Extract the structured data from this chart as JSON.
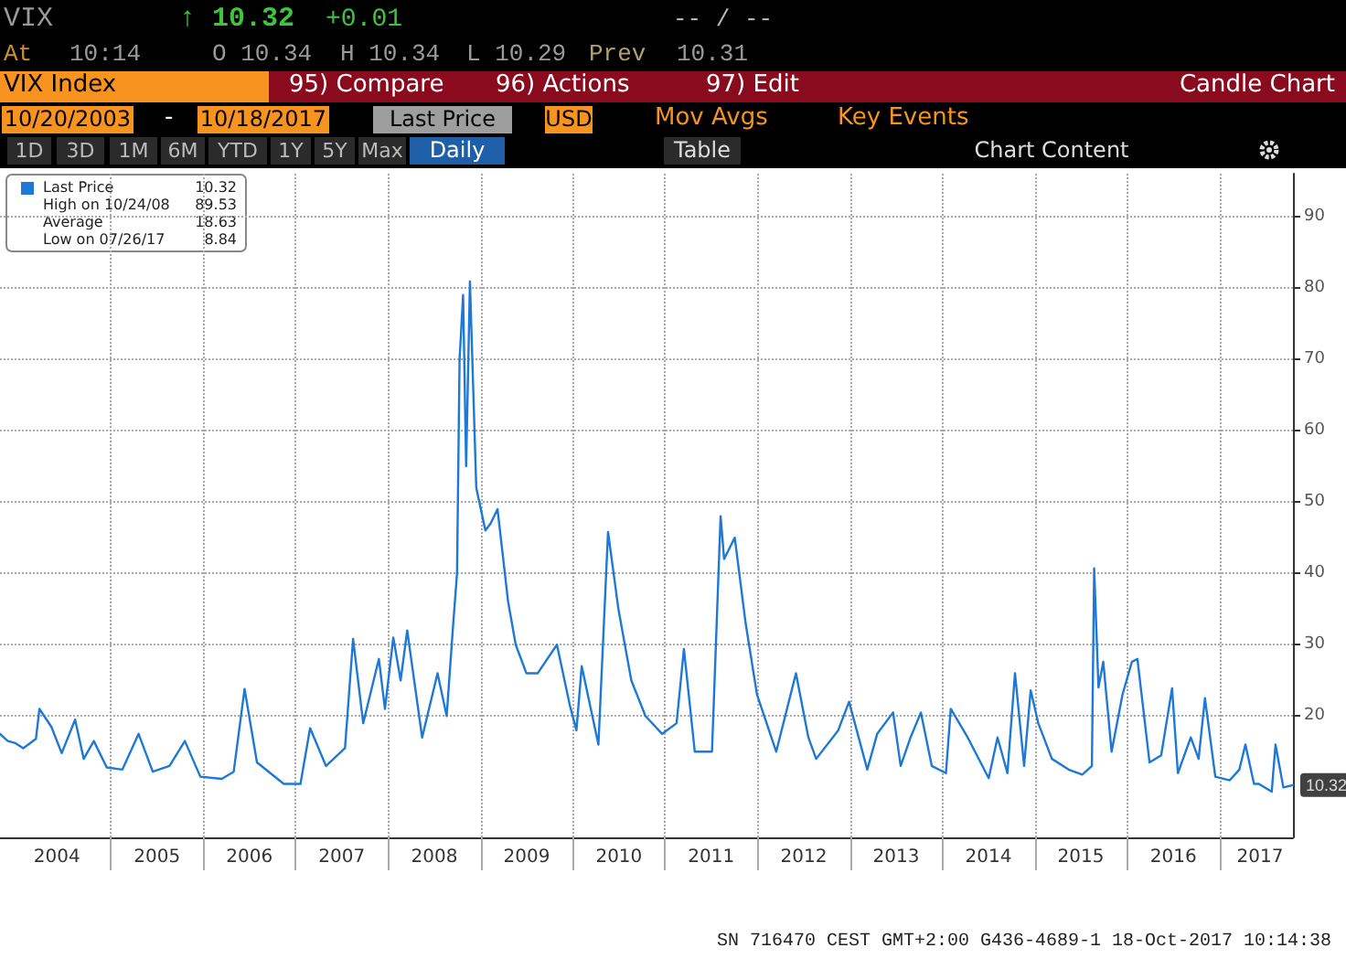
{
  "chart_data": {
    "type": "line",
    "title": "VIX Index",
    "series": [
      {
        "name": "Last Price",
        "color": "#1e78d6",
        "x": [
          "2003-10-20",
          "2003-11-20",
          "2003-12-20",
          "2004-01-20",
          "2004-03-10",
          "2004-03-24",
          "2004-05-10",
          "2004-06-20",
          "2004-08-12",
          "2004-09-15",
          "2004-10-25",
          "2004-12-15",
          "2005-02-15",
          "2005-04-20",
          "2005-06-15",
          "2005-08-20",
          "2005-10-20",
          "2005-12-20",
          "2006-03-15",
          "2006-05-01",
          "2006-06-13",
          "2006-08-01",
          "2006-11-15",
          "2007-01-20",
          "2007-02-27",
          "2007-05-01",
          "2007-07-15",
          "2007-08-16",
          "2007-09-25",
          "2007-11-26",
          "2007-12-20",
          "2008-01-22",
          "2008-02-20",
          "2008-03-17",
          "2008-05-15",
          "2008-07-15",
          "2008-08-20",
          "2008-09-15",
          "2008-09-30",
          "2008-10-10",
          "2008-10-24",
          "2008-11-05",
          "2008-11-20",
          "2008-12-15",
          "2009-01-20",
          "2009-02-10",
          "2009-03-09",
          "2009-04-20",
          "2009-05-20",
          "2009-07-01",
          "2009-08-15",
          "2009-10-30",
          "2009-12-20",
          "2010-01-15",
          "2010-02-05",
          "2010-04-12",
          "2010-05-20",
          "2010-06-30",
          "2010-08-20",
          "2010-10-15",
          "2010-12-20",
          "2011-02-15",
          "2011-03-16",
          "2011-04-28",
          "2011-07-05",
          "2011-08-08",
          "2011-08-22",
          "2011-10-03",
          "2011-11-15",
          "2011-12-30",
          "2012-03-15",
          "2012-06-01",
          "2012-07-20",
          "2012-08-20",
          "2012-11-15",
          "2012-12-28",
          "2013-03-10",
          "2013-04-18",
          "2013-06-20",
          "2013-07-20",
          "2013-08-28",
          "2013-10-08",
          "2013-11-20",
          "2014-01-15",
          "2014-02-03",
          "2014-04-11",
          "2014-07-03",
          "2014-08-07",
          "2014-09-15",
          "2014-10-15",
          "2014-11-20",
          "2014-12-16",
          "2015-01-15",
          "2015-03-10",
          "2015-05-15",
          "2015-07-08",
          "2015-08-15",
          "2015-08-24",
          "2015-09-10",
          "2015-09-29",
          "2015-11-01",
          "2015-12-14",
          "2016-01-20",
          "2016-02-11",
          "2016-03-30",
          "2016-05-15",
          "2016-06-27",
          "2016-07-20",
          "2016-09-09",
          "2016-10-10",
          "2016-11-04",
          "2016-12-15",
          "2017-02-10",
          "2017-03-20",
          "2017-04-13",
          "2017-05-17",
          "2017-06-05",
          "2017-07-26",
          "2017-08-10",
          "2017-09-10",
          "2017-10-18"
        ],
        "values": [
          17.5,
          16.5,
          16.2,
          15.5,
          16.8,
          21,
          18.5,
          14.8,
          19.5,
          14,
          16.5,
          12.8,
          12.5,
          17.5,
          12.2,
          13,
          16.5,
          11.5,
          11.2,
          12.2,
          23.8,
          13.5,
          10.5,
          10.5,
          18.3,
          13,
          15.5,
          30.8,
          19,
          28,
          21,
          31,
          25,
          32,
          17,
          26,
          20,
          33,
          40,
          70,
          79,
          55,
          80.9,
          52,
          46,
          47,
          49,
          36,
          30,
          26,
          26,
          30,
          21.5,
          18,
          27,
          16,
          45.8,
          35,
          25,
          20,
          17.5,
          19,
          29.4,
          15,
          15,
          48,
          42,
          45,
          33,
          23,
          15,
          26,
          17,
          14,
          18,
          22,
          12.5,
          17.5,
          20.5,
          13,
          17,
          20.5,
          13,
          12,
          21,
          17,
          11.3,
          17,
          12,
          26,
          13,
          23.6,
          19,
          14,
          12.5,
          11.8,
          13,
          40.7,
          24,
          27.6,
          15,
          23,
          27.6,
          28,
          13.5,
          14.5,
          23.9,
          12,
          17,
          14,
          22.5,
          11.5,
          11,
          12.5,
          16,
          10.5,
          10.5,
          9.4,
          16,
          10,
          10.32
        ]
      }
    ],
    "xlim": [
      "2003-10-20",
      "2017-10-18"
    ],
    "xticks": [
      {
        "value": "2004-06-01",
        "label": "2004"
      },
      {
        "value": "2005-01-01",
        "label": null
      },
      {
        "value": "2005-07-02",
        "label": "2005"
      },
      {
        "value": "2006-01-01",
        "label": null
      },
      {
        "value": "2006-07-02",
        "label": "2006"
      },
      {
        "value": "2007-01-01",
        "label": null
      },
      {
        "value": "2007-07-02",
        "label": "2007"
      },
      {
        "value": "2008-01-01",
        "label": null
      },
      {
        "value": "2008-07-02",
        "label": "2008"
      },
      {
        "value": "2009-01-01",
        "label": null
      },
      {
        "value": "2009-07-02",
        "label": "2009"
      },
      {
        "value": "2010-01-01",
        "label": null
      },
      {
        "value": "2010-07-02",
        "label": "2010"
      },
      {
        "value": "2011-01-01",
        "label": null
      },
      {
        "value": "2011-07-02",
        "label": "2011"
      },
      {
        "value": "2012-01-01",
        "label": null
      },
      {
        "value": "2012-07-02",
        "label": "2012"
      },
      {
        "value": "2013-01-01",
        "label": null
      },
      {
        "value": "2013-07-02",
        "label": "2013"
      },
      {
        "value": "2014-01-01",
        "label": null
      },
      {
        "value": "2014-07-02",
        "label": "2014"
      },
      {
        "value": "2015-01-01",
        "label": null
      },
      {
        "value": "2015-07-02",
        "label": "2015"
      },
      {
        "value": "2016-01-01",
        "label": null
      },
      {
        "value": "2016-07-02",
        "label": "2016"
      },
      {
        "value": "2017-01-01",
        "label": null
      },
      {
        "value": "2017-06-10",
        "label": "2017"
      }
    ],
    "ylim": [
      3,
      96
    ],
    "yticks": [
      20,
      30,
      40,
      50,
      60,
      70,
      80,
      90
    ],
    "grid": true,
    "marker": "none",
    "line_style": "solid",
    "legend": "top left",
    "annotations": [
      "VIX",
      "↑ 10.32",
      "+0.01",
      "-- / --",
      "At",
      "10:14",
      "O 10.34",
      "H 10.34",
      "L 10.29",
      "Prev",
      "10.31",
      "95) Compare",
      "96) Actions",
      "97) Edit",
      "Candle Chart",
      "10/20/2003",
      "-",
      "10/18/2017",
      "Last Price",
      "USD",
      "Mov Avgs",
      "Key Events",
      "1D",
      "3D",
      "1M",
      "6M",
      "YTD",
      "1Y",
      "5Y",
      "Max",
      "Daily",
      "Table",
      "Chart Content",
      "High on 10/24/08",
      "89.53",
      "Average",
      "18.63",
      "Low on 07/26/17",
      "8.84",
      "10.32",
      {
        "text": "10.32",
        "x": "2017-10-18",
        "y": 10.32
      },
      "SN 716470 CEST GMT+2:00 G436-4689-1 18-Oct-2017 10:14:38"
    ]
  }
}
